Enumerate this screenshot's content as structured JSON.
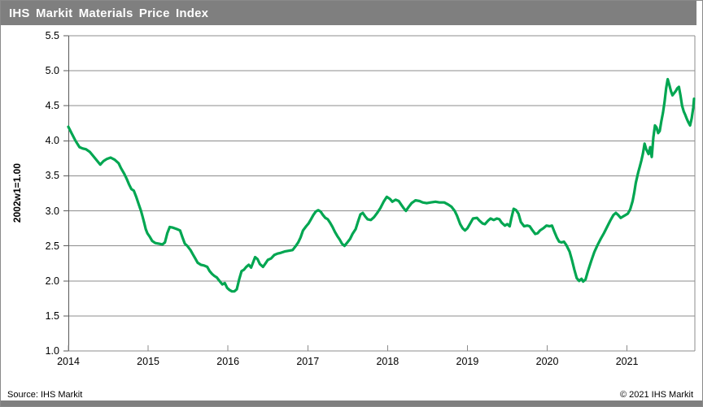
{
  "header": {
    "title": "IHS Markit Materials Price Index"
  },
  "footer": {
    "source": "Source: IHS Markit",
    "copyright": "© 2021 IHS Markit"
  },
  "colors": {
    "header_bg": "#7f7f7f",
    "footer_bar": "#7f7f7f",
    "page_border": "#8a8a8a",
    "gridline": "#8c8c8c",
    "axis": "#595959",
    "series_green": "#00a651",
    "title_text": "#ffffff",
    "tick_text": "#000000"
  },
  "chart_data": {
    "type": "line",
    "title": "IHS Markit Materials Price Index",
    "xlabel": "",
    "ylabel": "2002w1=1.00",
    "xlim": [
      2014,
      2021.85
    ],
    "ylim": [
      1.0,
      5.5
    ],
    "grid": "horizontal",
    "legend": "none",
    "yticks": [
      5.5,
      5.0,
      4.5,
      4.0,
      3.5,
      3.0,
      2.5,
      2.0,
      1.5,
      1.0
    ],
    "ytick_labels": [
      "5.5",
      "5.0",
      "4.5",
      "4.0",
      "3.5",
      "3.0",
      "2.5",
      "2.0",
      "1.5",
      "1.0"
    ],
    "xticks": [
      2014,
      2015,
      2016,
      2017,
      2018,
      2019,
      2020,
      2021
    ],
    "xtick_labels": [
      "2014",
      "2015",
      "2016",
      "2017",
      "2018",
      "2019",
      "2020",
      "2021"
    ],
    "series": [
      {
        "name": "Materials Price Index (2002w1=1.00)",
        "color": "#00a651",
        "points": [
          [
            2014.0,
            4.2
          ],
          [
            2014.04,
            4.11
          ],
          [
            2014.09,
            4.0
          ],
          [
            2014.14,
            3.91
          ],
          [
            2014.18,
            3.89
          ],
          [
            2014.22,
            3.88
          ],
          [
            2014.27,
            3.84
          ],
          [
            2014.3,
            3.8
          ],
          [
            2014.35,
            3.73
          ],
          [
            2014.4,
            3.66
          ],
          [
            2014.44,
            3.71
          ],
          [
            2014.48,
            3.74
          ],
          [
            2014.53,
            3.76
          ],
          [
            2014.58,
            3.73
          ],
          [
            2014.63,
            3.68
          ],
          [
            2014.66,
            3.61
          ],
          [
            2014.7,
            3.53
          ],
          [
            2014.73,
            3.46
          ],
          [
            2014.76,
            3.38
          ],
          [
            2014.79,
            3.31
          ],
          [
            2014.82,
            3.29
          ],
          [
            2014.85,
            3.2
          ],
          [
            2014.88,
            3.1
          ],
          [
            2014.91,
            3.0
          ],
          [
            2014.93,
            2.92
          ],
          [
            2014.95,
            2.83
          ],
          [
            2014.97,
            2.74
          ],
          [
            2014.99,
            2.68
          ],
          [
            2015.02,
            2.63
          ],
          [
            2015.05,
            2.57
          ],
          [
            2015.09,
            2.54
          ],
          [
            2015.14,
            2.53
          ],
          [
            2015.18,
            2.52
          ],
          [
            2015.21,
            2.55
          ],
          [
            2015.24,
            2.68
          ],
          [
            2015.27,
            2.77
          ],
          [
            2015.31,
            2.76
          ],
          [
            2015.36,
            2.74
          ],
          [
            2015.4,
            2.72
          ],
          [
            2015.43,
            2.62
          ],
          [
            2015.46,
            2.53
          ],
          [
            2015.49,
            2.5
          ],
          [
            2015.53,
            2.44
          ],
          [
            2015.56,
            2.38
          ],
          [
            2015.59,
            2.32
          ],
          [
            2015.62,
            2.26
          ],
          [
            2015.66,
            2.23
          ],
          [
            2015.7,
            2.22
          ],
          [
            2015.74,
            2.2
          ],
          [
            2015.77,
            2.14
          ],
          [
            2015.8,
            2.1
          ],
          [
            2015.83,
            2.07
          ],
          [
            2015.86,
            2.05
          ],
          [
            2015.9,
            1.99
          ],
          [
            2015.93,
            1.95
          ],
          [
            2015.96,
            1.97
          ],
          [
            2015.99,
            1.9
          ],
          [
            2016.02,
            1.87
          ],
          [
            2016.05,
            1.85
          ],
          [
            2016.08,
            1.85
          ],
          [
            2016.11,
            1.88
          ],
          [
            2016.14,
            2.02
          ],
          [
            2016.17,
            2.14
          ],
          [
            2016.2,
            2.16
          ],
          [
            2016.23,
            2.2
          ],
          [
            2016.26,
            2.23
          ],
          [
            2016.29,
            2.19
          ],
          [
            2016.32,
            2.28
          ],
          [
            2016.34,
            2.34
          ],
          [
            2016.37,
            2.31
          ],
          [
            2016.4,
            2.24
          ],
          [
            2016.44,
            2.2
          ],
          [
            2016.47,
            2.25
          ],
          [
            2016.5,
            2.3
          ],
          [
            2016.54,
            2.32
          ],
          [
            2016.58,
            2.37
          ],
          [
            2016.62,
            2.39
          ],
          [
            2016.66,
            2.4
          ],
          [
            2016.71,
            2.42
          ],
          [
            2016.76,
            2.43
          ],
          [
            2016.81,
            2.44
          ],
          [
            2016.85,
            2.5
          ],
          [
            2016.88,
            2.55
          ],
          [
            2016.91,
            2.62
          ],
          [
            2016.94,
            2.72
          ],
          [
            2016.98,
            2.78
          ],
          [
            2017.01,
            2.82
          ],
          [
            2017.04,
            2.88
          ],
          [
            2017.07,
            2.94
          ],
          [
            2017.1,
            2.99
          ],
          [
            2017.13,
            3.01
          ],
          [
            2017.16,
            2.99
          ],
          [
            2017.19,
            2.94
          ],
          [
            2017.22,
            2.9
          ],
          [
            2017.25,
            2.88
          ],
          [
            2017.28,
            2.83
          ],
          [
            2017.31,
            2.77
          ],
          [
            2017.34,
            2.7
          ],
          [
            2017.37,
            2.64
          ],
          [
            2017.4,
            2.59
          ],
          [
            2017.43,
            2.53
          ],
          [
            2017.46,
            2.5
          ],
          [
            2017.49,
            2.54
          ],
          [
            2017.53,
            2.6
          ],
          [
            2017.56,
            2.67
          ],
          [
            2017.6,
            2.74
          ],
          [
            2017.63,
            2.85
          ],
          [
            2017.66,
            2.95
          ],
          [
            2017.69,
            2.97
          ],
          [
            2017.72,
            2.92
          ],
          [
            2017.75,
            2.88
          ],
          [
            2017.79,
            2.87
          ],
          [
            2017.83,
            2.91
          ],
          [
            2017.87,
            2.97
          ],
          [
            2017.91,
            3.04
          ],
          [
            2017.95,
            3.13
          ],
          [
            2017.99,
            3.2
          ],
          [
            2018.03,
            3.17
          ],
          [
            2018.06,
            3.13
          ],
          [
            2018.1,
            3.16
          ],
          [
            2018.14,
            3.14
          ],
          [
            2018.17,
            3.09
          ],
          [
            2018.2,
            3.04
          ],
          [
            2018.23,
            3.0
          ],
          [
            2018.26,
            3.05
          ],
          [
            2018.3,
            3.11
          ],
          [
            2018.35,
            3.15
          ],
          [
            2018.4,
            3.14
          ],
          [
            2018.44,
            3.12
          ],
          [
            2018.49,
            3.11
          ],
          [
            2018.54,
            3.12
          ],
          [
            2018.6,
            3.13
          ],
          [
            2018.65,
            3.12
          ],
          [
            2018.71,
            3.12
          ],
          [
            2018.76,
            3.09
          ],
          [
            2018.8,
            3.06
          ],
          [
            2018.84,
            3.0
          ],
          [
            2018.87,
            2.93
          ],
          [
            2018.91,
            2.81
          ],
          [
            2018.94,
            2.75
          ],
          [
            2018.97,
            2.72
          ],
          [
            2019.0,
            2.75
          ],
          [
            2019.04,
            2.83
          ],
          [
            2019.07,
            2.89
          ],
          [
            2019.12,
            2.9
          ],
          [
            2019.15,
            2.86
          ],
          [
            2019.19,
            2.82
          ],
          [
            2019.22,
            2.81
          ],
          [
            2019.26,
            2.86
          ],
          [
            2019.29,
            2.89
          ],
          [
            2019.33,
            2.87
          ],
          [
            2019.37,
            2.89
          ],
          [
            2019.4,
            2.88
          ],
          [
            2019.43,
            2.83
          ],
          [
            2019.47,
            2.79
          ],
          [
            2019.5,
            2.81
          ],
          [
            2019.53,
            2.78
          ],
          [
            2019.55,
            2.89
          ],
          [
            2019.58,
            3.03
          ],
          [
            2019.61,
            3.01
          ],
          [
            2019.64,
            2.96
          ],
          [
            2019.67,
            2.84
          ],
          [
            2019.71,
            2.78
          ],
          [
            2019.75,
            2.79
          ],
          [
            2019.78,
            2.78
          ],
          [
            2019.81,
            2.73
          ],
          [
            2019.85,
            2.67
          ],
          [
            2019.88,
            2.68
          ],
          [
            2019.91,
            2.72
          ],
          [
            2019.95,
            2.75
          ],
          [
            2019.99,
            2.79
          ],
          [
            2020.03,
            2.78
          ],
          [
            2020.06,
            2.79
          ],
          [
            2020.09,
            2.7
          ],
          [
            2020.12,
            2.62
          ],
          [
            2020.15,
            2.56
          ],
          [
            2020.18,
            2.55
          ],
          [
            2020.21,
            2.56
          ],
          [
            2020.24,
            2.51
          ],
          [
            2020.28,
            2.42
          ],
          [
            2020.31,
            2.3
          ],
          [
            2020.34,
            2.16
          ],
          [
            2020.37,
            2.04
          ],
          [
            2020.4,
            2.0
          ],
          [
            2020.43,
            2.03
          ],
          [
            2020.45,
            1.99
          ],
          [
            2020.48,
            2.02
          ],
          [
            2020.51,
            2.14
          ],
          [
            2020.55,
            2.28
          ],
          [
            2020.59,
            2.41
          ],
          [
            2020.63,
            2.51
          ],
          [
            2020.67,
            2.6
          ],
          [
            2020.71,
            2.68
          ],
          [
            2020.75,
            2.77
          ],
          [
            2020.79,
            2.86
          ],
          [
            2020.83,
            2.94
          ],
          [
            2020.86,
            2.97
          ],
          [
            2020.89,
            2.94
          ],
          [
            2020.92,
            2.9
          ],
          [
            2020.95,
            2.92
          ],
          [
            2020.98,
            2.94
          ],
          [
            2021.01,
            2.96
          ],
          [
            2021.04,
            3.02
          ],
          [
            2021.07,
            3.14
          ],
          [
            2021.09,
            3.26
          ],
          [
            2021.11,
            3.4
          ],
          [
            2021.14,
            3.55
          ],
          [
            2021.16,
            3.63
          ],
          [
            2021.18,
            3.72
          ],
          [
            2021.2,
            3.82
          ],
          [
            2021.22,
            3.96
          ],
          [
            2021.24,
            3.88
          ],
          [
            2021.27,
            3.81
          ],
          [
            2021.29,
            3.91
          ],
          [
            2021.31,
            3.77
          ],
          [
            2021.33,
            4.05
          ],
          [
            2021.35,
            4.22
          ],
          [
            2021.37,
            4.19
          ],
          [
            2021.39,
            4.11
          ],
          [
            2021.41,
            4.14
          ],
          [
            2021.43,
            4.28
          ],
          [
            2021.45,
            4.4
          ],
          [
            2021.47,
            4.55
          ],
          [
            2021.49,
            4.75
          ],
          [
            2021.51,
            4.88
          ],
          [
            2021.53,
            4.8
          ],
          [
            2021.55,
            4.71
          ],
          [
            2021.57,
            4.65
          ],
          [
            2021.59,
            4.68
          ],
          [
            2021.61,
            4.71
          ],
          [
            2021.63,
            4.75
          ],
          [
            2021.65,
            4.77
          ],
          [
            2021.67,
            4.65
          ],
          [
            2021.69,
            4.5
          ],
          [
            2021.71,
            4.42
          ],
          [
            2021.73,
            4.37
          ],
          [
            2021.75,
            4.31
          ],
          [
            2021.77,
            4.26
          ],
          [
            2021.79,
            4.22
          ],
          [
            2021.81,
            4.32
          ],
          [
            2021.83,
            4.47
          ],
          [
            2021.84,
            4.6
          ]
        ]
      }
    ]
  }
}
